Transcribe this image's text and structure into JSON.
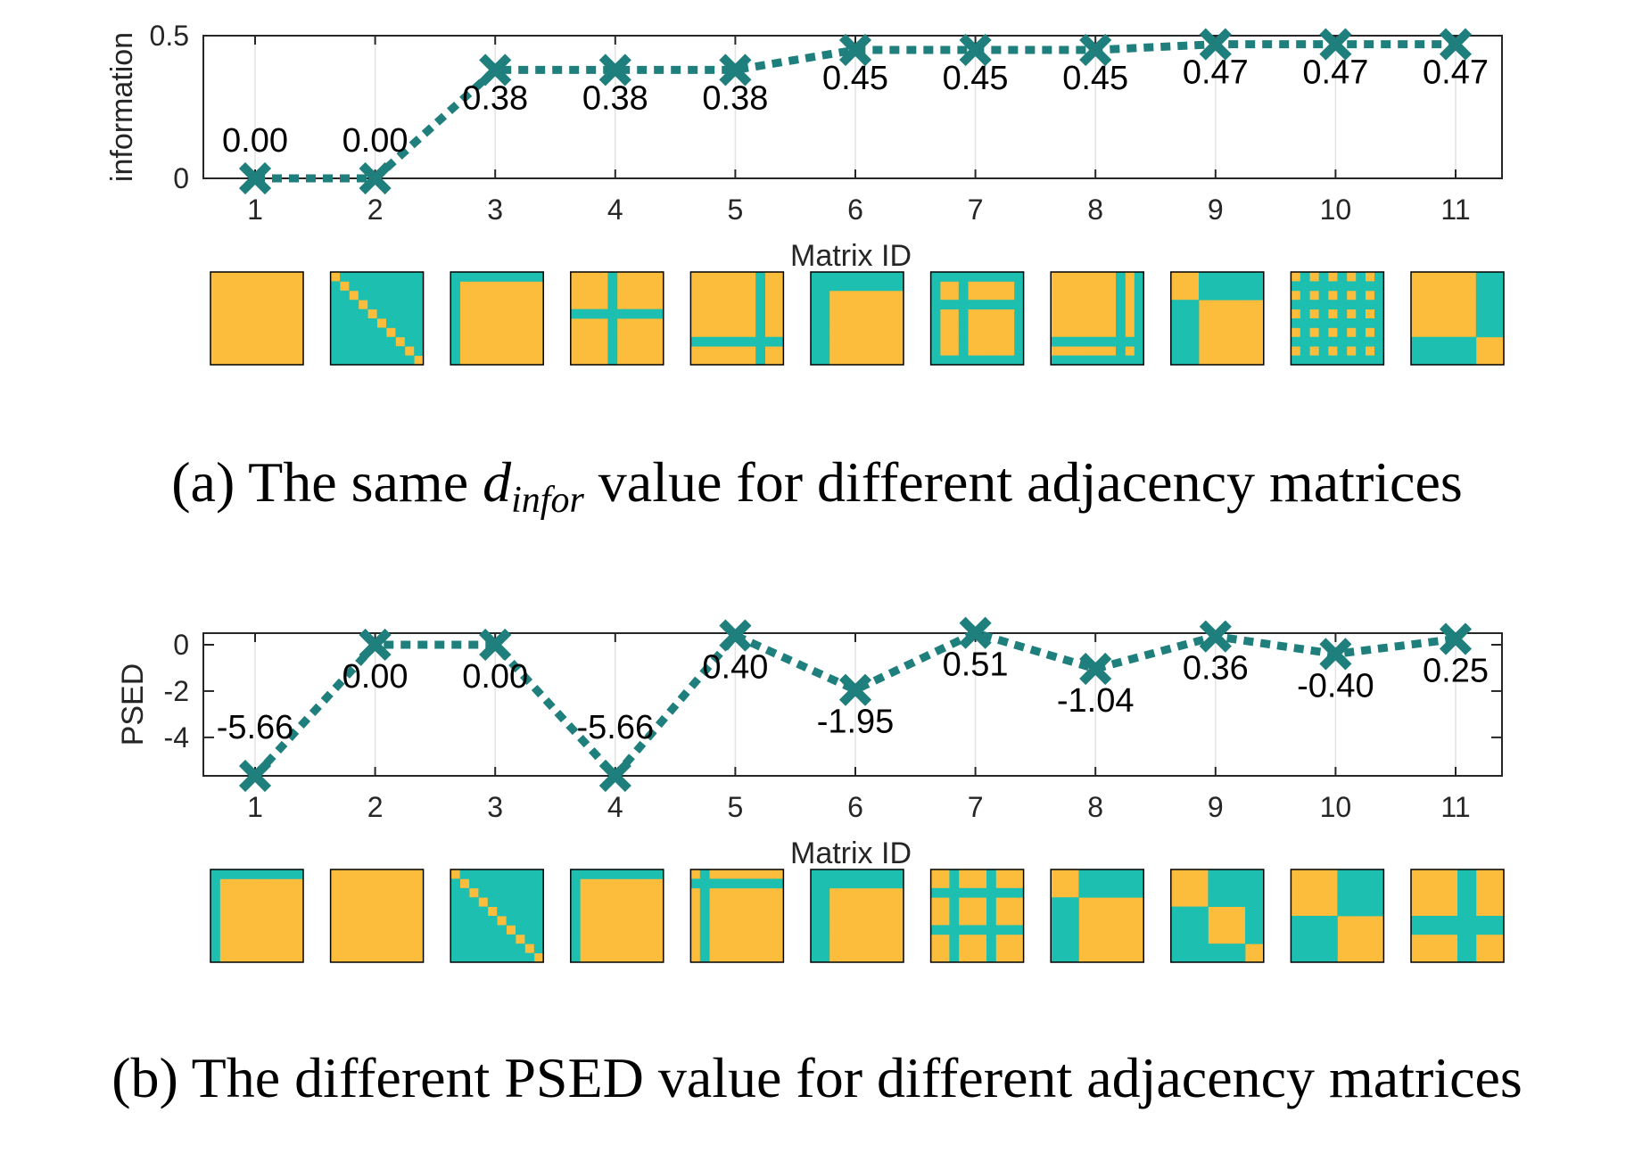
{
  "colors": {
    "marker": "#1f7f7d",
    "cell_on": "#1dbfb0",
    "cell_off": "#fbbd3b"
  },
  "chart_data": [
    {
      "type": "line",
      "categories": [
        "1",
        "2",
        "3",
        "4",
        "5",
        "6",
        "7",
        "8",
        "9",
        "10",
        "11"
      ],
      "values": [
        0.0,
        0.0,
        0.38,
        0.38,
        0.38,
        0.45,
        0.45,
        0.45,
        0.47,
        0.47,
        0.47
      ],
      "data_labels": [
        "0.00",
        "0.00",
        "0.38",
        "0.38",
        "0.38",
        "0.45",
        "0.45",
        "0.45",
        "0.47",
        "0.47",
        "0.47"
      ],
      "ylabel": "information",
      "xlabel": "Matrix ID",
      "ylim": [
        0,
        0.5
      ],
      "yticks": [
        "0",
        "0.5"
      ],
      "grid": "vertical",
      "caption_prefix": "(a) The same ",
      "caption_math_base": "d",
      "caption_math_sub": "infor",
      "caption_suffix": " value for different adjacency matrices",
      "matrices": [
        {
          "n": 10,
          "pattern": "none"
        },
        {
          "n": 10,
          "pattern": "diag"
        },
        {
          "n": 10,
          "pattern": "lines",
          "rows": [
            0
          ],
          "cols": [
            0
          ]
        },
        {
          "n": 10,
          "pattern": "lines",
          "rows": [
            4
          ],
          "cols": [
            4
          ]
        },
        {
          "n": 10,
          "pattern": "lines",
          "rows": [
            7
          ],
          "cols": [
            7
          ]
        },
        {
          "n": 10,
          "pattern": "lines",
          "rows": [
            0,
            1
          ],
          "cols": [
            0,
            1
          ]
        },
        {
          "n": 10,
          "pattern": "lines",
          "rows": [
            0,
            3,
            9
          ],
          "cols": [
            0,
            3,
            9
          ]
        },
        {
          "n": 10,
          "pattern": "lines",
          "rows": [
            7,
            9
          ],
          "cols": [
            7,
            9
          ]
        },
        {
          "n": 10,
          "pattern": "blocks",
          "sizes": [
            3,
            7
          ]
        },
        {
          "n": 10,
          "pattern": "lines",
          "rows": [
            1,
            3,
            5,
            7,
            9
          ],
          "cols": [
            1,
            3,
            5,
            7,
            9
          ]
        },
        {
          "n": 10,
          "pattern": "blocks",
          "sizes": [
            7,
            3
          ]
        }
      ]
    },
    {
      "type": "line",
      "categories": [
        "1",
        "2",
        "3",
        "4",
        "5",
        "6",
        "7",
        "8",
        "9",
        "10",
        "11"
      ],
      "values": [
        -5.66,
        0.0,
        0.0,
        -5.66,
        0.4,
        -1.95,
        0.51,
        -1.04,
        0.36,
        -0.4,
        0.25
      ],
      "data_labels": [
        "-5.66",
        "0.00",
        "0.00",
        "-5.66",
        "0.40",
        "-1.95",
        "0.51",
        "-1.04",
        "0.36",
        "-0.40",
        "0.25"
      ],
      "ylabel": "PSED",
      "xlabel": "Matrix ID",
      "ylim": [
        -5.66,
        0.5
      ],
      "yticks": [
        "0",
        "-2",
        "-4"
      ],
      "grid": "vertical",
      "caption": "(b) The different PSED value for different adjacency matrices",
      "matrices": [
        {
          "n": 10,
          "pattern": "lines",
          "rows": [
            0
          ],
          "cols": [
            0
          ]
        },
        {
          "n": 10,
          "pattern": "none"
        },
        {
          "n": 10,
          "pattern": "diag"
        },
        {
          "n": 10,
          "pattern": "lines",
          "rows": [
            0
          ],
          "cols": [
            0
          ]
        },
        {
          "n": 10,
          "pattern": "lines",
          "rows": [
            1
          ],
          "cols": [
            1
          ]
        },
        {
          "n": 10,
          "pattern": "lines",
          "rows": [
            0,
            1
          ],
          "cols": [
            0,
            1
          ]
        },
        {
          "n": 10,
          "pattern": "lines",
          "rows": [
            2,
            6
          ],
          "cols": [
            2,
            6
          ]
        },
        {
          "n": 10,
          "pattern": "blocks",
          "sizes": [
            3,
            7
          ]
        },
        {
          "n": 10,
          "pattern": "blocks",
          "sizes": [
            4,
            4,
            2
          ]
        },
        {
          "n": 10,
          "pattern": "blocks",
          "sizes": [
            5,
            5
          ]
        },
        {
          "n": 10,
          "pattern": "lines",
          "rows": [
            5,
            6
          ],
          "cols": [
            5,
            6
          ]
        }
      ]
    }
  ]
}
